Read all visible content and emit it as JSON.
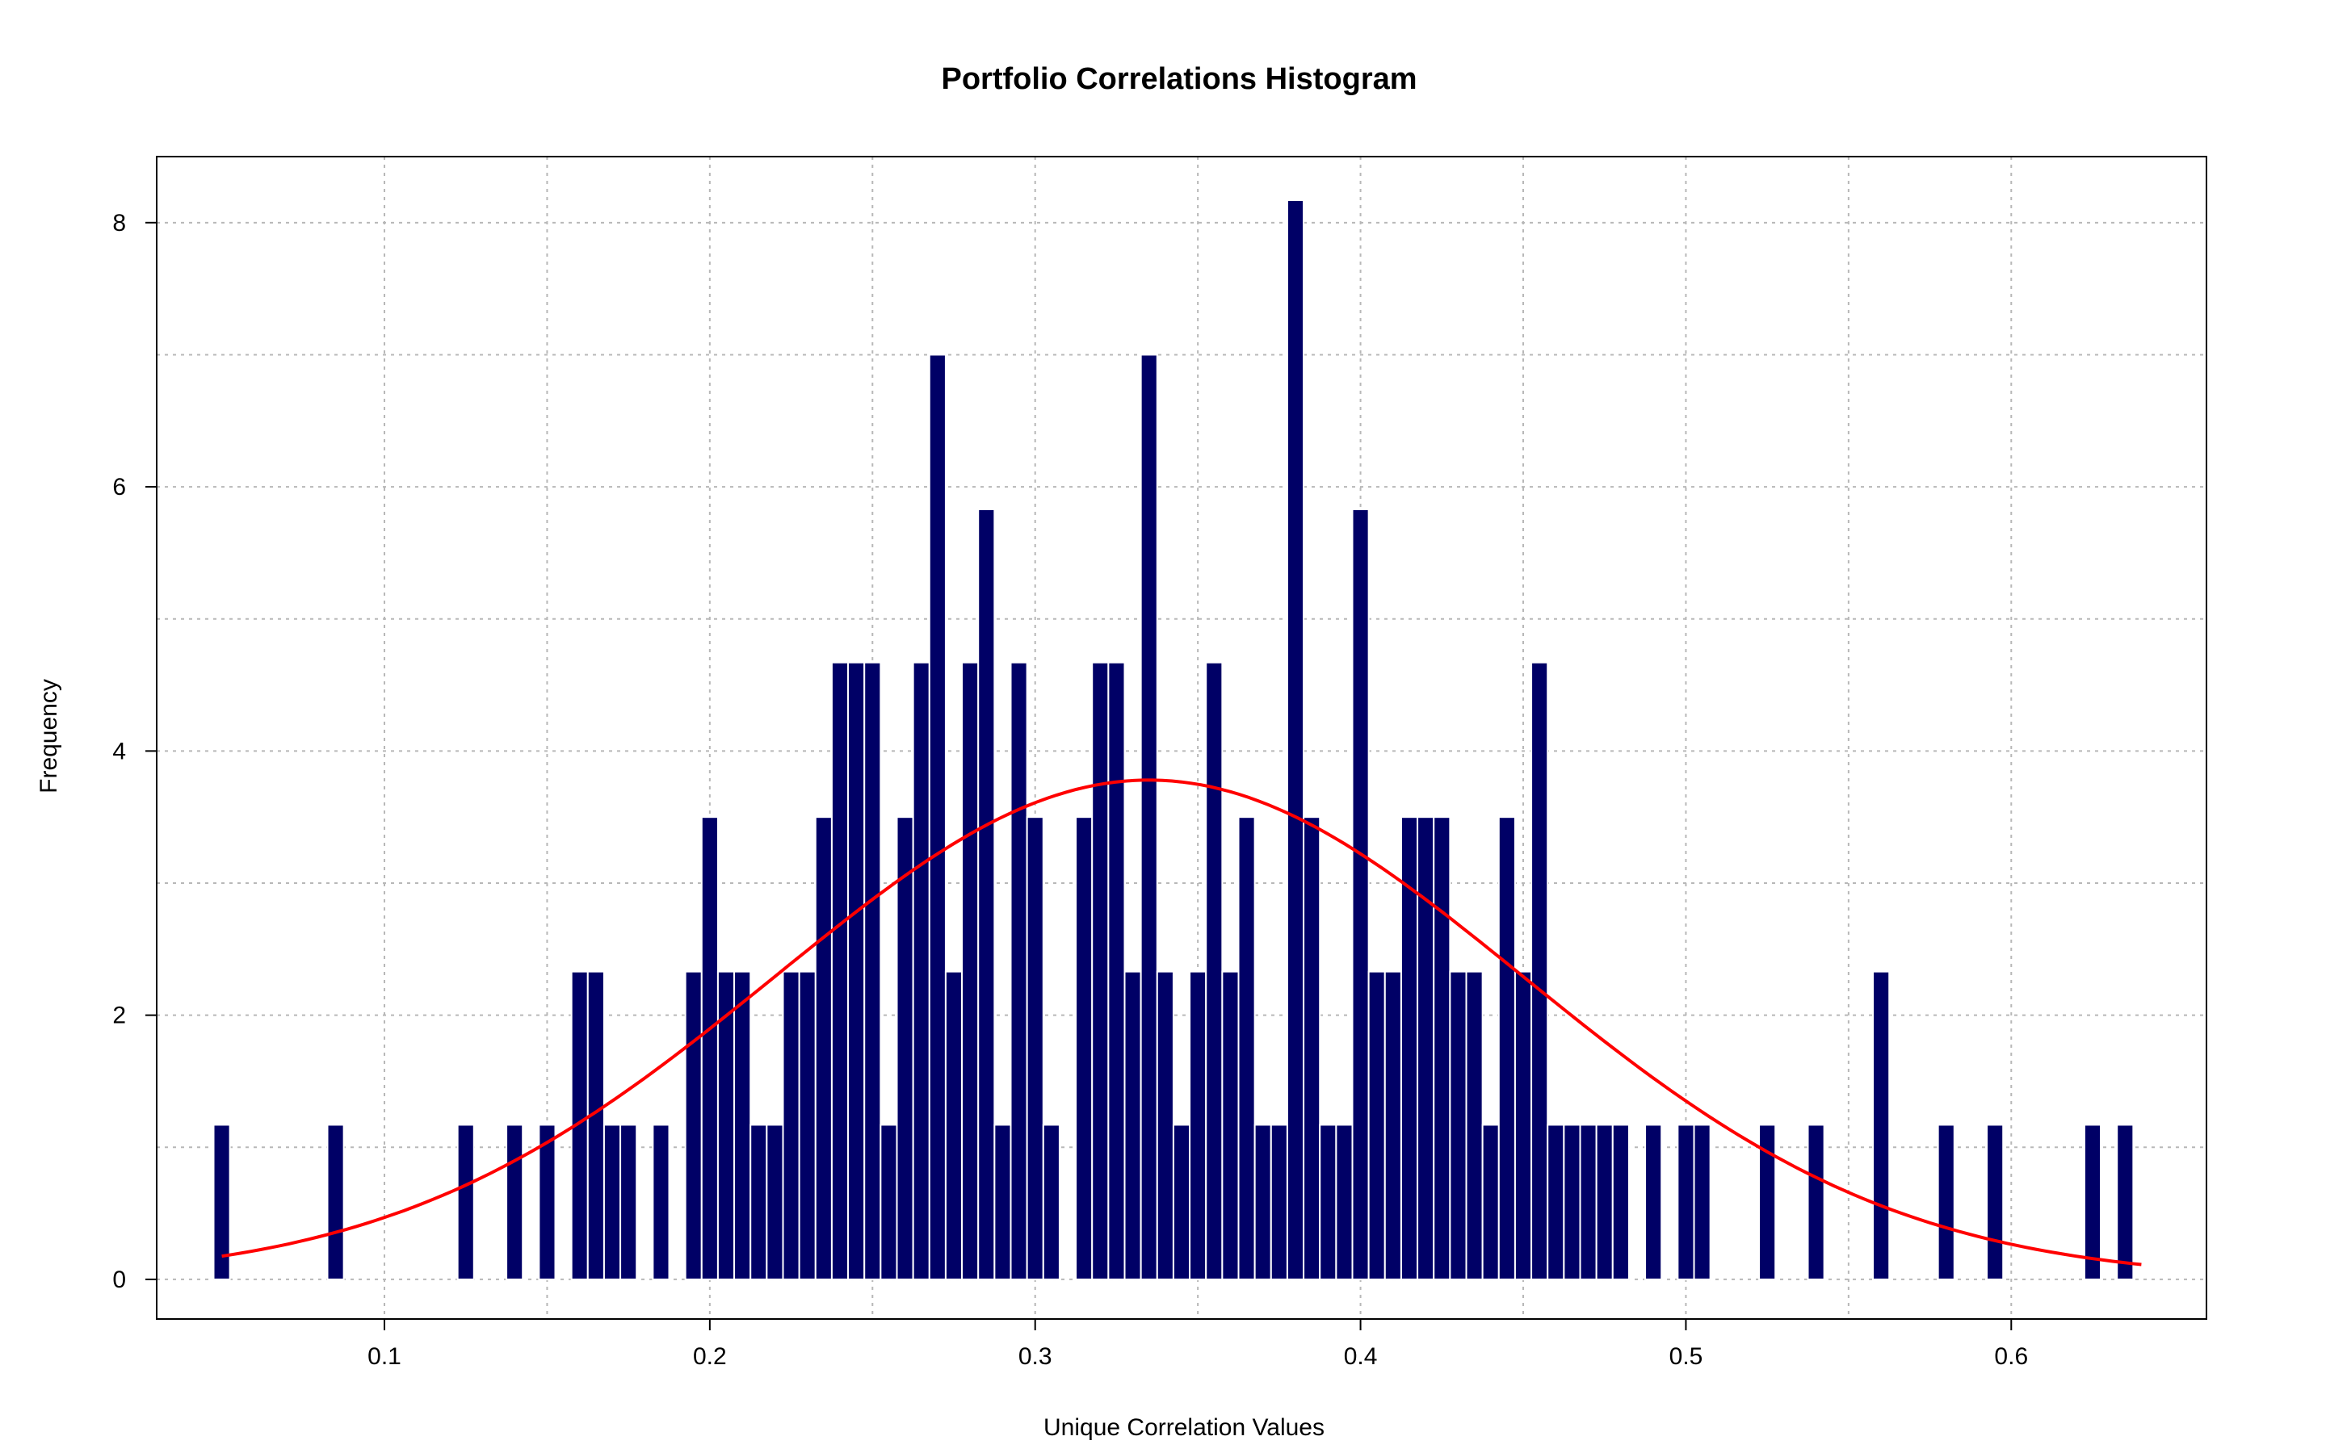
{
  "chart_data": {
    "type": "bar",
    "title": "Portfolio Correlations Histogram",
    "xlabel": "Unique Correlation Values",
    "ylabel": "Frequency",
    "xlim": [
      0.03,
      0.66
    ],
    "ylim": [
      -0.3,
      8.5
    ],
    "x_ticks": [
      0.1,
      0.2,
      0.3,
      0.4,
      0.5,
      0.6
    ],
    "x_tick_labels": [
      "0.1",
      "0.2",
      "0.3",
      "0.4",
      "0.5",
      "0.6"
    ],
    "y_ticks": [
      0,
      2,
      4,
      6,
      8
    ],
    "y_tick_labels": [
      "0",
      "2",
      "4",
      "6",
      "8"
    ],
    "x_grid": [
      0.1,
      0.15,
      0.2,
      0.25,
      0.3,
      0.35,
      0.4,
      0.45,
      0.5,
      0.55,
      0.6
    ],
    "y_grid": [
      0,
      1,
      2,
      3,
      4,
      5,
      6,
      7,
      8
    ],
    "grid": true,
    "bin_width": 0.005,
    "bins": [
      [
        0.05,
        1.17
      ],
      [
        0.085,
        1.17
      ],
      [
        0.125,
        1.17
      ],
      [
        0.14,
        1.17
      ],
      [
        0.15,
        1.17
      ],
      [
        0.16,
        2.33
      ],
      [
        0.165,
        2.33
      ],
      [
        0.17,
        1.17
      ],
      [
        0.175,
        1.17
      ],
      [
        0.185,
        1.17
      ],
      [
        0.195,
        2.33
      ],
      [
        0.2,
        3.5
      ],
      [
        0.205,
        2.33
      ],
      [
        0.21,
        2.33
      ],
      [
        0.215,
        1.17
      ],
      [
        0.22,
        1.17
      ],
      [
        0.225,
        2.33
      ],
      [
        0.23,
        2.33
      ],
      [
        0.235,
        3.5
      ],
      [
        0.24,
        4.67
      ],
      [
        0.245,
        4.67
      ],
      [
        0.25,
        4.67
      ],
      [
        0.255,
        1.17
      ],
      [
        0.26,
        3.5
      ],
      [
        0.265,
        4.67
      ],
      [
        0.27,
        7.0
      ],
      [
        0.275,
        2.33
      ],
      [
        0.28,
        4.67
      ],
      [
        0.285,
        5.83
      ],
      [
        0.29,
        1.17
      ],
      [
        0.295,
        4.67
      ],
      [
        0.3,
        3.5
      ],
      [
        0.305,
        1.17
      ],
      [
        0.315,
        3.5
      ],
      [
        0.32,
        4.67
      ],
      [
        0.325,
        4.67
      ],
      [
        0.33,
        2.33
      ],
      [
        0.335,
        7.0
      ],
      [
        0.34,
        2.33
      ],
      [
        0.345,
        1.17
      ],
      [
        0.35,
        2.33
      ],
      [
        0.355,
        4.67
      ],
      [
        0.36,
        2.33
      ],
      [
        0.365,
        3.5
      ],
      [
        0.37,
        1.17
      ],
      [
        0.375,
        1.17
      ],
      [
        0.38,
        8.17
      ],
      [
        0.385,
        3.5
      ],
      [
        0.39,
        1.17
      ],
      [
        0.395,
        1.17
      ],
      [
        0.4,
        5.83
      ],
      [
        0.405,
        2.33
      ],
      [
        0.41,
        2.33
      ],
      [
        0.415,
        3.5
      ],
      [
        0.42,
        3.5
      ],
      [
        0.425,
        3.5
      ],
      [
        0.43,
        2.33
      ],
      [
        0.435,
        2.33
      ],
      [
        0.44,
        1.17
      ],
      [
        0.445,
        3.5
      ],
      [
        0.45,
        2.33
      ],
      [
        0.455,
        4.67
      ],
      [
        0.46,
        1.17
      ],
      [
        0.465,
        1.17
      ],
      [
        0.47,
        1.17
      ],
      [
        0.475,
        1.17
      ],
      [
        0.48,
        1.17
      ],
      [
        0.49,
        1.17
      ],
      [
        0.5,
        1.17
      ],
      [
        0.505,
        1.17
      ],
      [
        0.525,
        1.17
      ],
      [
        0.54,
        1.17
      ],
      [
        0.56,
        2.33
      ],
      [
        0.58,
        1.17
      ],
      [
        0.595,
        1.17
      ],
      [
        0.625,
        1.17
      ],
      [
        0.635,
        1.17
      ]
    ],
    "bar_color": "#000066",
    "bar_border_color": "#ffffff",
    "density_curve": {
      "type": "normal",
      "mean": 0.335,
      "sd": 0.115,
      "peak": 3.78,
      "x_range": [
        0.05,
        0.64
      ],
      "color": "#ff0000"
    }
  }
}
